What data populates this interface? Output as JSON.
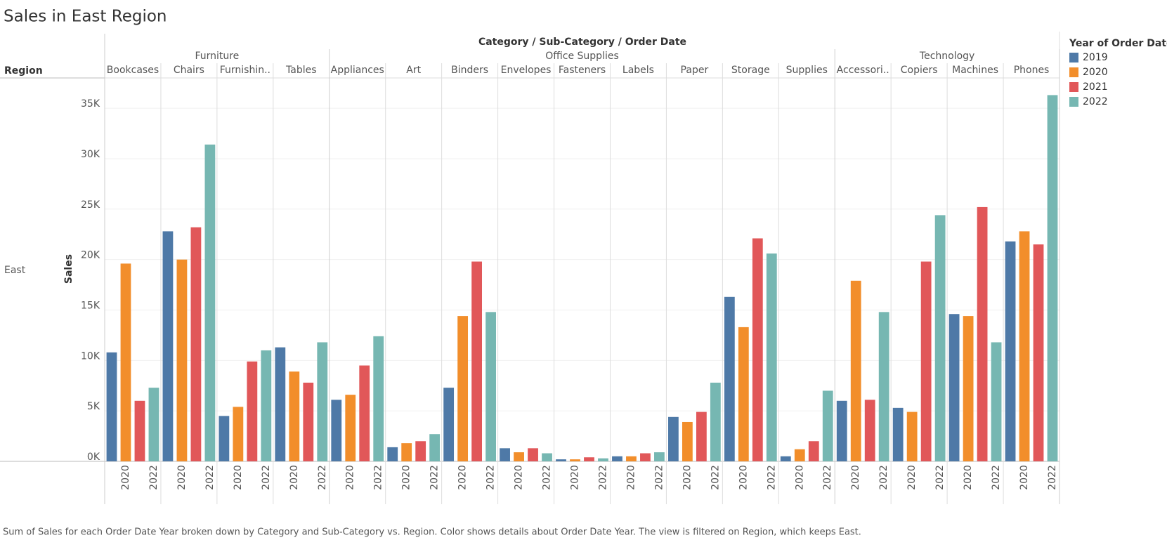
{
  "chart_data": {
    "type": "bar",
    "title": "Sales in East Region",
    "header": "Category / Sub-Category / Order Date",
    "row_header": "Region",
    "row_label": "East",
    "y_label": "Sales",
    "legend_title": "Year of Order Date",
    "groups": [
      {
        "name": "Furniture",
        "subcategories": [
          "Bookcases",
          "Chairs",
          "Furnishin..",
          "Tables"
        ]
      },
      {
        "name": "Office Supplies",
        "subcategories": [
          "Appliances",
          "Art",
          "Binders",
          "Envelopes",
          "Fasteners",
          "Labels",
          "Paper",
          "Storage",
          "Supplies"
        ]
      },
      {
        "name": "Technology",
        "subcategories": [
          "Accessori..",
          "Copiers",
          "Machines",
          "Phones"
        ]
      }
    ],
    "x_labels": [
      null,
      "2020",
      null,
      "2022"
    ],
    "series": [
      {
        "name": "2019",
        "color": "#4e79a7",
        "values": [
          10800,
          22800,
          4500,
          11300,
          6100,
          1400,
          7300,
          1300,
          200,
          500,
          4400,
          16300,
          500,
          6000,
          5300,
          14600,
          21800
        ]
      },
      {
        "name": "2020",
        "color": "#f28e2b",
        "values": [
          19600,
          20000,
          5400,
          8900,
          6600,
          1800,
          14400,
          900,
          200,
          500,
          3900,
          13300,
          1200,
          17900,
          4900,
          14400,
          22800
        ]
      },
      {
        "name": "2021",
        "color": "#e15759",
        "values": [
          6000,
          23200,
          9900,
          7800,
          9500,
          2000,
          19800,
          1300,
          400,
          800,
          4900,
          22100,
          2000,
          6100,
          19800,
          25200,
          21500
        ]
      },
      {
        "name": "2022",
        "color": "#76b7b2",
        "values": [
          7300,
          31400,
          11000,
          11800,
          12400,
          2700,
          14800,
          800,
          300,
          900,
          7800,
          20600,
          7000,
          14800,
          24400,
          11800,
          36300
        ]
      }
    ],
    "ylim": [
      0,
      38000
    ],
    "yticks": [
      {
        "value": 0,
        "label": "0K"
      },
      {
        "value": 5000,
        "label": "5K"
      },
      {
        "value": 10000,
        "label": "10K"
      },
      {
        "value": 15000,
        "label": "15K"
      },
      {
        "value": 20000,
        "label": "20K"
      },
      {
        "value": 25000,
        "label": "25K"
      },
      {
        "value": 30000,
        "label": "30K"
      },
      {
        "value": 35000,
        "label": "35K"
      }
    ],
    "grid": true,
    "caption": "Sum of Sales for each Order Date Year broken down by Category and Sub-Category vs. Region.  Color shows details about Order Date Year. The view is filtered on Region, which keeps East."
  }
}
